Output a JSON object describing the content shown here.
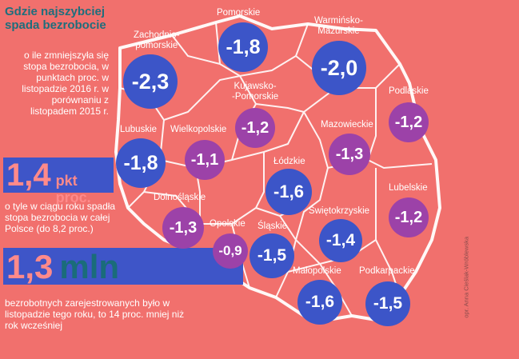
{
  "title": "Gdzie najszybciej spada bezrobocie",
  "intro": "o ile zmniejszyła się stopa bezrobocia, w punktach proc. w listopadzie 2016 r. w porównaniu z listopadem 2015 r.",
  "stat1": {
    "value": "1,4",
    "unit": "pkt proc.",
    "text": "o tyle w ciągu roku spadła stopa bezrobocia w całej Polsce (do 8,2 proc.)"
  },
  "stat2": {
    "value": "1,3",
    "unit": "mln",
    "text": "bezrobotnych zarejestrowanych było w listopadzie tego roku, to 14 proc. mniej niż rok wcześniej"
  },
  "credit": "opr. Anna Cieślak-Wróblewska",
  "colors": {
    "background": "#f1706d",
    "large_change": "#3c55c8",
    "small_change": "#9c42a8"
  },
  "regions": [
    {
      "name": "Pomorskie",
      "value": "-1,8"
    },
    {
      "name": "Warmińsko-\nMazurskie",
      "value": "-2,0"
    },
    {
      "name": "Zachodnio-\npomorskie",
      "value": "-2,3"
    },
    {
      "name": "Kujawsko-\n-Pomorskie",
      "value": "-1,2"
    },
    {
      "name": "Podlaskie",
      "value": "-1,2"
    },
    {
      "name": "Lubuskie",
      "value": "-1,8"
    },
    {
      "name": "Wielkopolskie",
      "value": "-1,1"
    },
    {
      "name": "Mazowieckie",
      "value": "-1,3"
    },
    {
      "name": "Łódzkie",
      "value": "-1,6"
    },
    {
      "name": "Lubelskie",
      "value": "-1,2"
    },
    {
      "name": "Dolnośląskie",
      "value": "-1,3"
    },
    {
      "name": "Opolskie",
      "value": "-0,9"
    },
    {
      "name": "Śląskie",
      "value": "-1,5"
    },
    {
      "name": "Świętokrzyskie",
      "value": "-1,4"
    },
    {
      "name": "Małopolskie",
      "value": "-1,6"
    },
    {
      "name": "Podkarpackie",
      "value": "-1,5"
    }
  ]
}
